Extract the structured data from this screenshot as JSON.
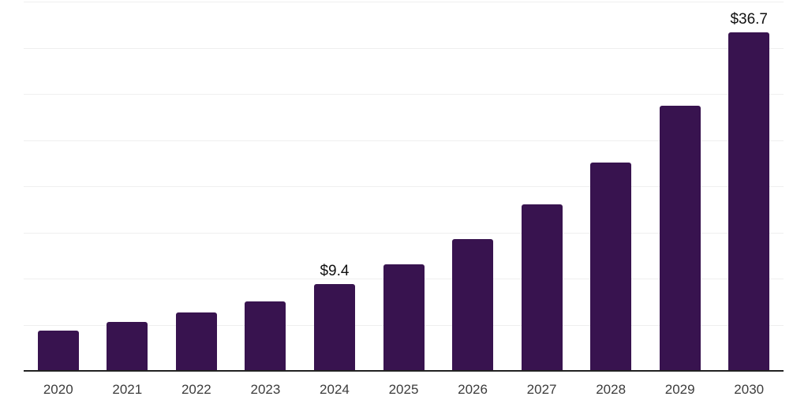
{
  "chart_data": {
    "type": "bar",
    "title": "",
    "xlabel": "",
    "ylabel": "",
    "categories": [
      "2020",
      "2021",
      "2022",
      "2023",
      "2024",
      "2025",
      "2026",
      "2027",
      "2028",
      "2029",
      "2030"
    ],
    "values": [
      4.4,
      5.3,
      6.3,
      7.5,
      9.4,
      11.5,
      14.3,
      18.0,
      22.6,
      28.7,
      36.7
    ],
    "data_labels": {
      "2024": "$9.4",
      "2030": "$36.7"
    },
    "ylim": [
      0,
      40
    ],
    "gridline_step": 5,
    "grid": "horizontal",
    "y_axis_labels_visible": false,
    "legend_position": "none",
    "colors": {
      "bar": "#38134F",
      "gridline": "#EFEFEF",
      "axis_line": "#222222",
      "tick_label": "#3C3C3C",
      "data_label": "#111111",
      "background": "#FFFFFF"
    }
  }
}
